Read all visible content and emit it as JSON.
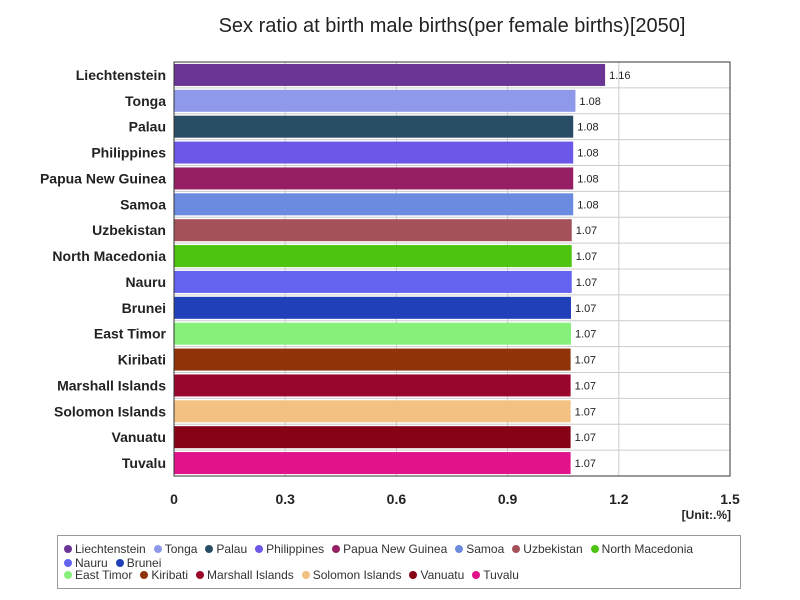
{
  "chart_data": {
    "type": "bar",
    "orientation": "horizontal",
    "title": "Sex ratio at birth male births(per female births)[2050]",
    "unit_label": "[Unit:.%]",
    "xlim": [
      0,
      1.5
    ],
    "x_ticks": [
      "0",
      "0.3",
      "0.6",
      "0.9",
      "1.2",
      "1.5"
    ],
    "x_tick_values": [
      0,
      0.3,
      0.6,
      0.9,
      1.2,
      1.5
    ],
    "grid": true,
    "legend_placement": "bottom",
    "categories": [
      "Liechtenstein",
      "Tonga",
      "Palau",
      "Philippines",
      "Papua New Guinea",
      "Samoa",
      "Uzbekistan",
      "North Macedonia",
      "Nauru",
      "Brunei",
      "East Timor",
      "Kiribati",
      "Marshall Islands",
      "Solomon Islands",
      "Vanuatu",
      "Tuvalu"
    ],
    "values": [
      1.163,
      1.083,
      1.077,
      1.077,
      1.077,
      1.077,
      1.073,
      1.073,
      1.073,
      1.071,
      1.071,
      1.07,
      1.07,
      1.07,
      1.07,
      1.07
    ],
    "value_labels": [
      "1.16",
      "1.08",
      "1.08",
      "1.08",
      "1.08",
      "1.08",
      "1.07",
      "1.07",
      "1.07",
      "1.07",
      "1.07",
      "1.07",
      "1.07",
      "1.07",
      "1.07",
      "1.07"
    ],
    "colors": [
      "#6b3595",
      "#8f99ea",
      "#2a4d66",
      "#6b57e8",
      "#961e63",
      "#6a8be0",
      "#a4515a",
      "#4dc410",
      "#6463f0",
      "#1f40b8",
      "#86f07a",
      "#8f3308",
      "#98062c",
      "#f3c282",
      "#880216",
      "#e0138a"
    ]
  }
}
